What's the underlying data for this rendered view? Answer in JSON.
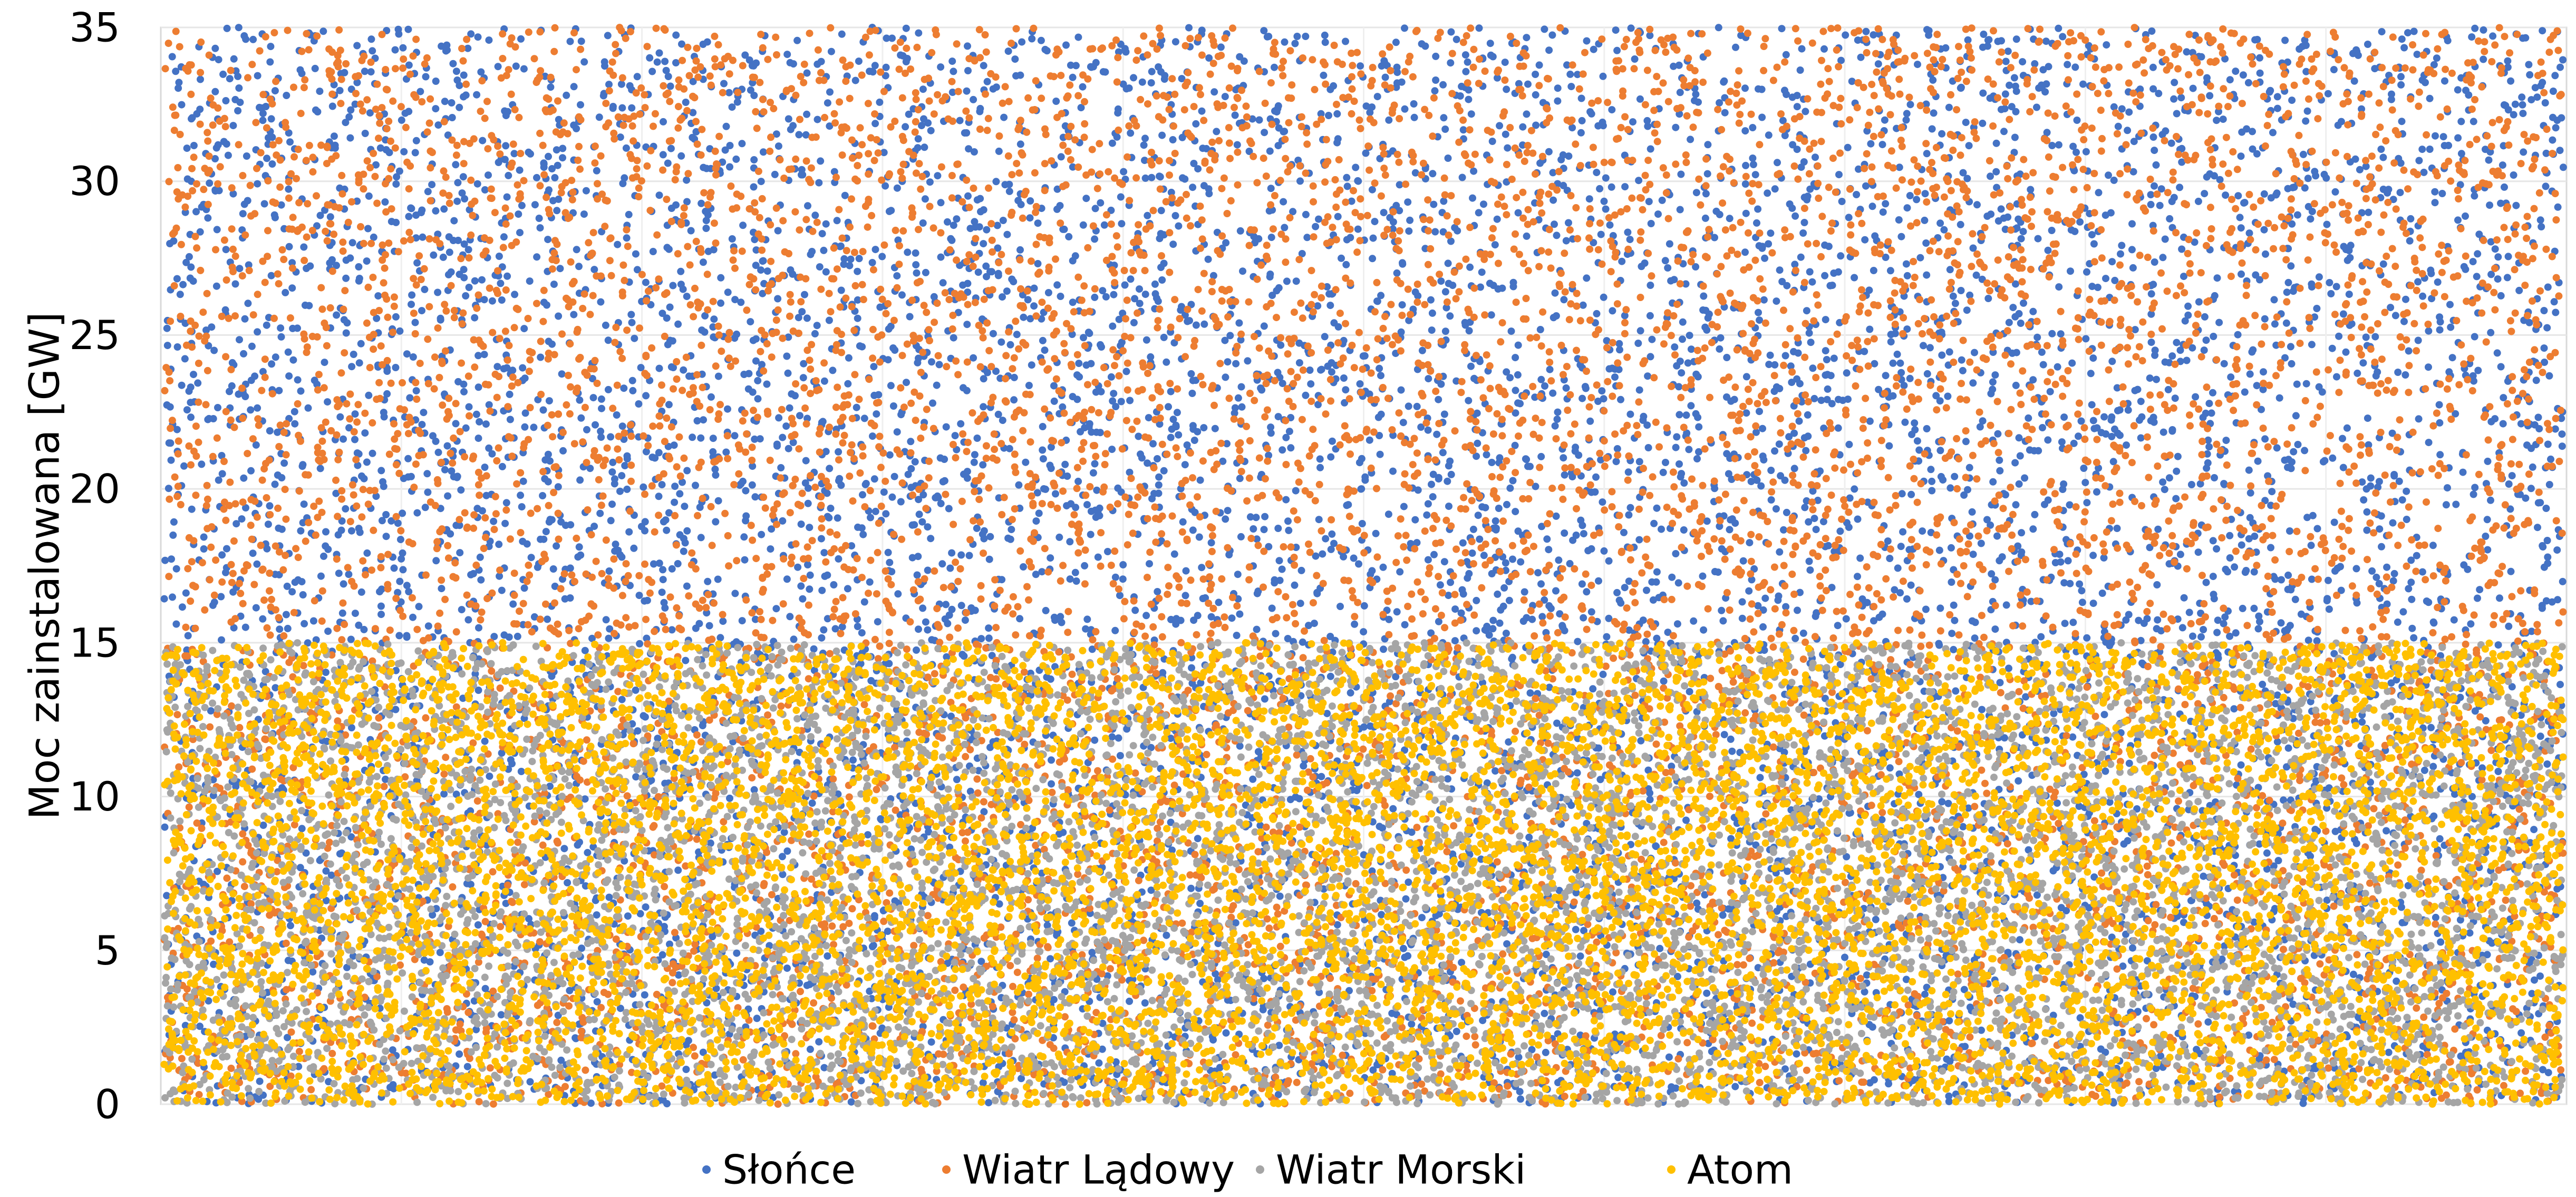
{
  "chart_data": {
    "type": "scatter",
    "title": "",
    "xlabel": "",
    "ylabel": "Moc zainstalowana [GW]",
    "ylim": [
      0,
      35
    ],
    "y_ticks": [
      "0",
      "5",
      "10",
      "15",
      "20",
      "25",
      "30",
      "35"
    ],
    "x_ticks_visible": false,
    "grid": true,
    "legend_position": "bottom",
    "series": [
      {
        "name": "Słońce",
        "color": "#4472C4",
        "approx_y_range": [
          0,
          35
        ],
        "point_count": 9000
      },
      {
        "name": "Wiatr Lądowy",
        "color": "#ED7D31",
        "approx_y_range": [
          0,
          35
        ],
        "point_count": 9000
      },
      {
        "name": "Wiatr Morski",
        "color": "#A5A5A5",
        "approx_y_range": [
          0,
          15
        ],
        "point_count": 8000
      },
      {
        "name": "Atom",
        "color": "#FFC000",
        "approx_y_range": [
          0,
          15
        ],
        "point_count": 9000
      }
    ]
  }
}
